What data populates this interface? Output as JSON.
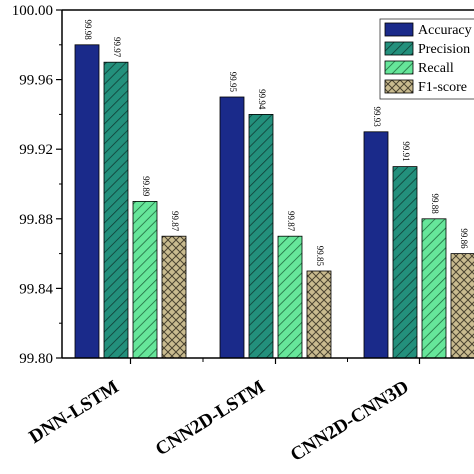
{
  "chart_data": {
    "type": "bar",
    "categories": [
      "DNN-LSTM",
      "CNN2D-LSTM",
      "CNN2D-CNN3D"
    ],
    "series": [
      {
        "name": "Accuracy",
        "values": [
          99.98,
          99.95,
          99.93
        ],
        "color": "#1a2a8a",
        "pattern": "solid"
      },
      {
        "name": "Precision",
        "values": [
          99.97,
          99.94,
          99.91
        ],
        "color": "#23907c",
        "pattern": "diagonal"
      },
      {
        "name": "Recall",
        "values": [
          99.89,
          99.87,
          99.88
        ],
        "color": "#66e69a",
        "pattern": "diagonal-light"
      },
      {
        "name": "F1-score",
        "values": [
          99.87,
          99.85,
          99.86
        ],
        "color": "#c9bb8f",
        "pattern": "crosshatch"
      }
    ],
    "data_labels": [
      [
        "99.98",
        "99.97",
        "99.89",
        "99.87"
      ],
      [
        "99.95",
        "99.94",
        "99.87",
        "99.85"
      ],
      [
        "99.93",
        "99.91",
        "99.88",
        "99.86"
      ]
    ],
    "yticks": [
      "99.80",
      "99.84",
      "99.88",
      "99.92",
      "99.96",
      "100.00"
    ],
    "ylim": [
      99.8,
      100.0
    ],
    "legend_position": "top-right",
    "grid": false
  }
}
